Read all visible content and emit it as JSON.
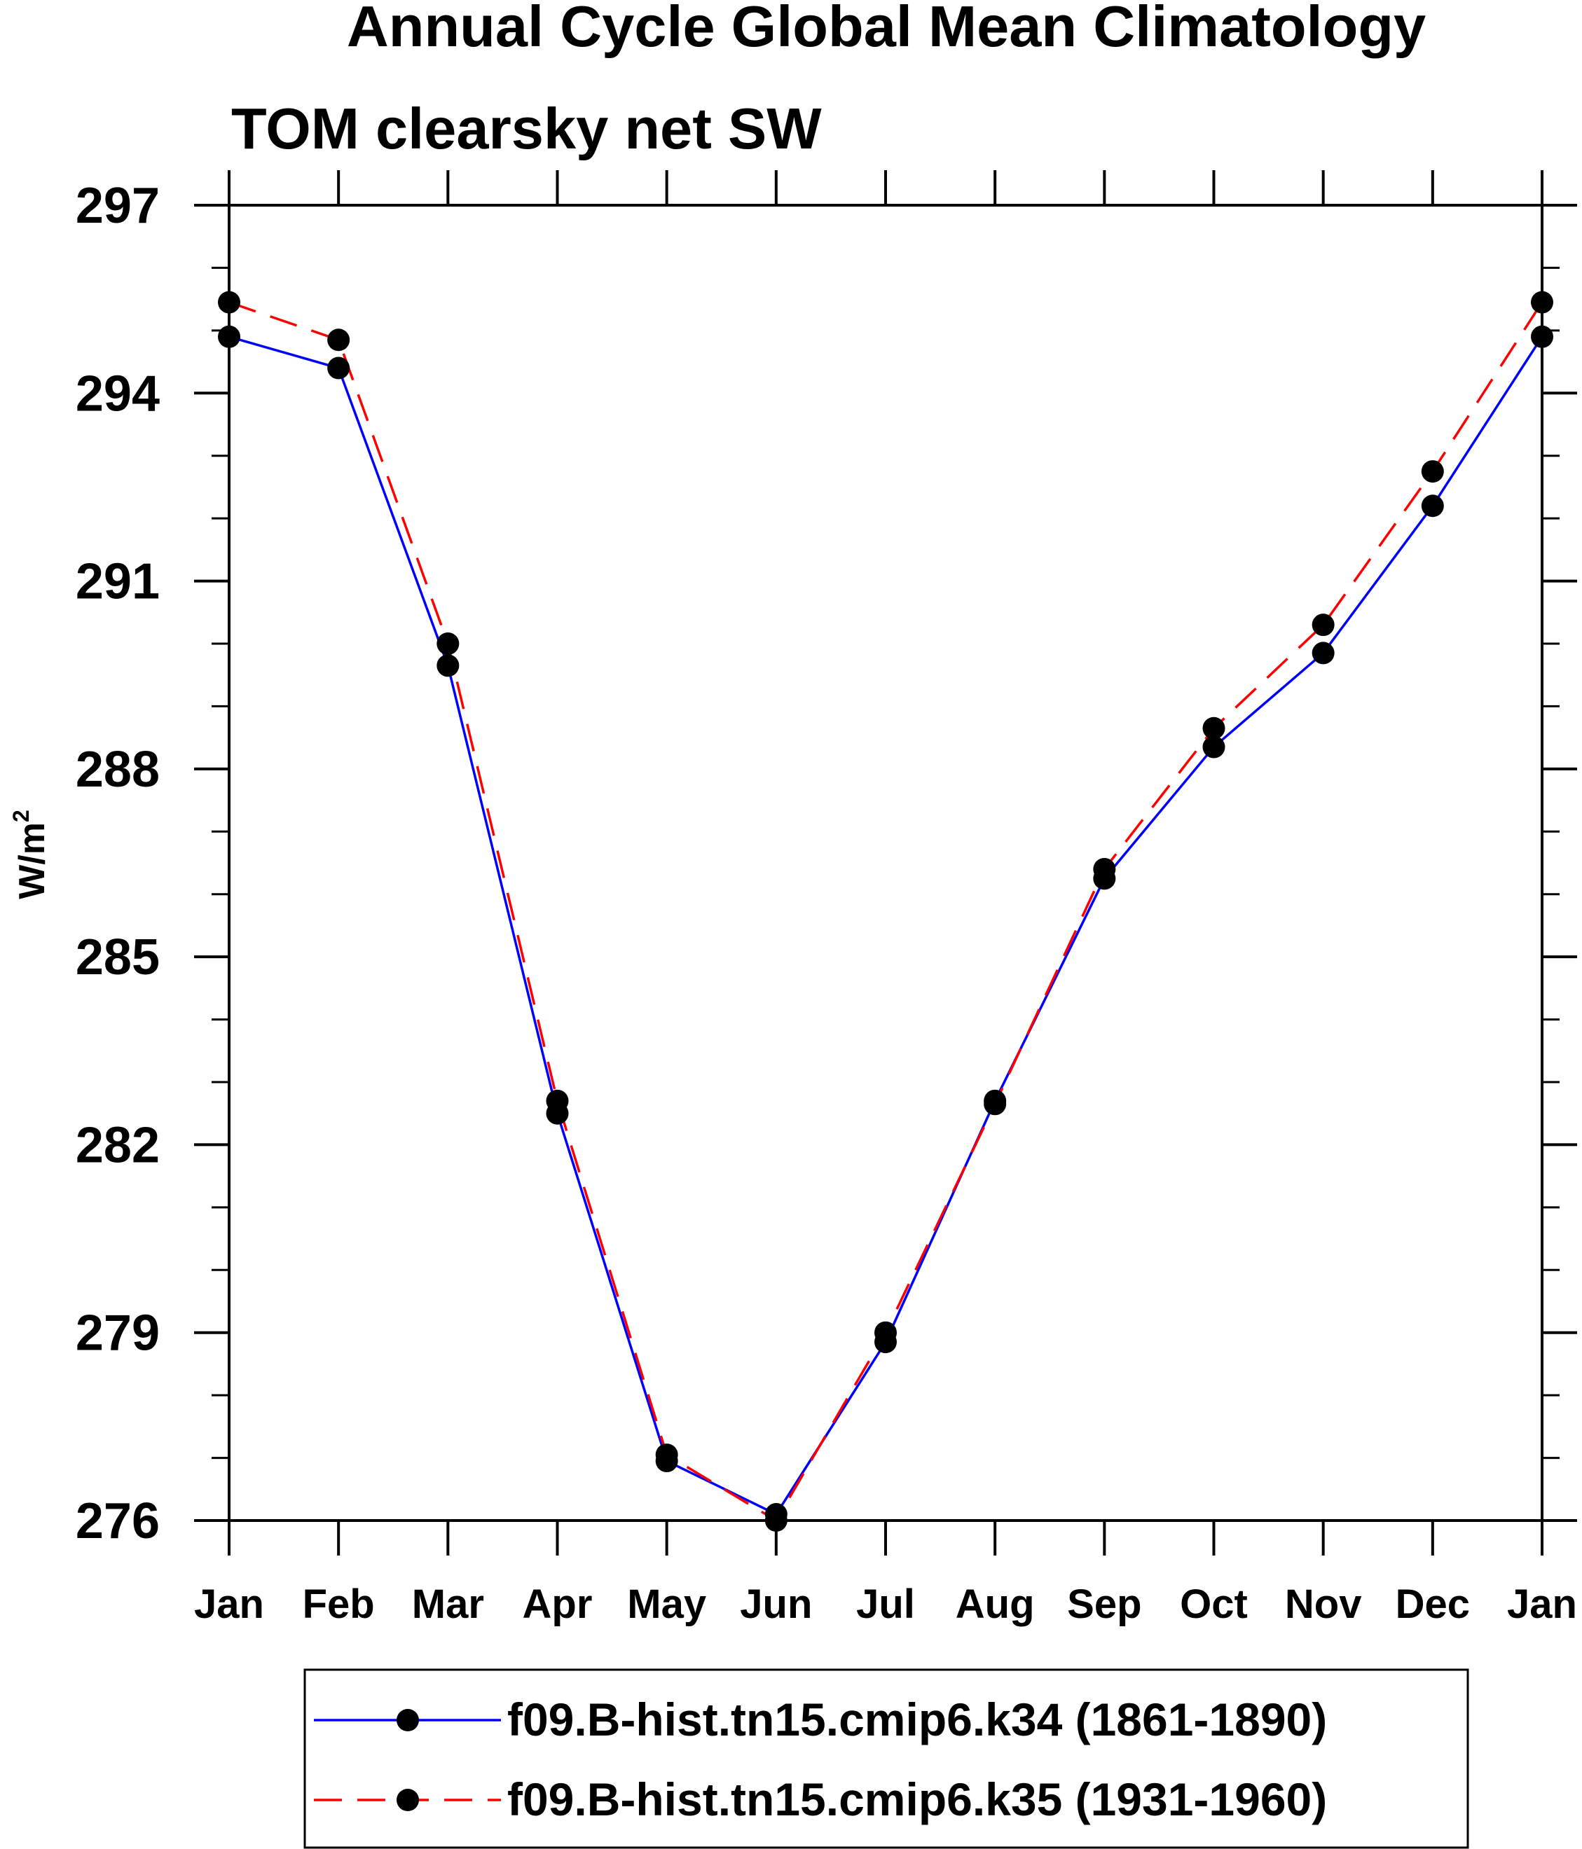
{
  "chart_data": {
    "type": "line",
    "title": "Annual Cycle Global Mean Climatology",
    "subtitle": "TOM clearsky net SW",
    "xlabel": "",
    "ylabel": "W/m",
    "ylabel_sup": "2",
    "categories": [
      "Jan",
      "Feb",
      "Mar",
      "Apr",
      "May",
      "Jun",
      "Jul",
      "Aug",
      "Sep",
      "Oct",
      "Nov",
      "Dec",
      "Jan"
    ],
    "yticks": [
      "297",
      "294",
      "291",
      "288",
      "285",
      "282",
      "279",
      "276"
    ],
    "ytick_values": [
      297,
      294,
      291,
      288,
      285,
      282,
      279,
      276
    ],
    "ylim": [
      276,
      297
    ],
    "series": [
      {
        "name": "f09.B-hist.tn15.cmip6.k34 (1861-1890)",
        "color": "#0000ff",
        "dash": "solid",
        "values": [
          294.9,
          294.4,
          289.65,
          282.5,
          276.95,
          276.1,
          278.85,
          282.7,
          286.25,
          288.35,
          289.85,
          292.2,
          294.9
        ]
      },
      {
        "name": "f09.B-hist.tn15.cmip6.k35 (1931-1960)",
        "color": "#ff0000",
        "dash": "dashed",
        "values": [
          295.45,
          294.85,
          290.0,
          282.7,
          277.05,
          276.0,
          279.0,
          282.65,
          286.4,
          288.65,
          290.3,
          292.75,
          295.45
        ]
      }
    ],
    "grid": false,
    "legend": "bottom"
  }
}
